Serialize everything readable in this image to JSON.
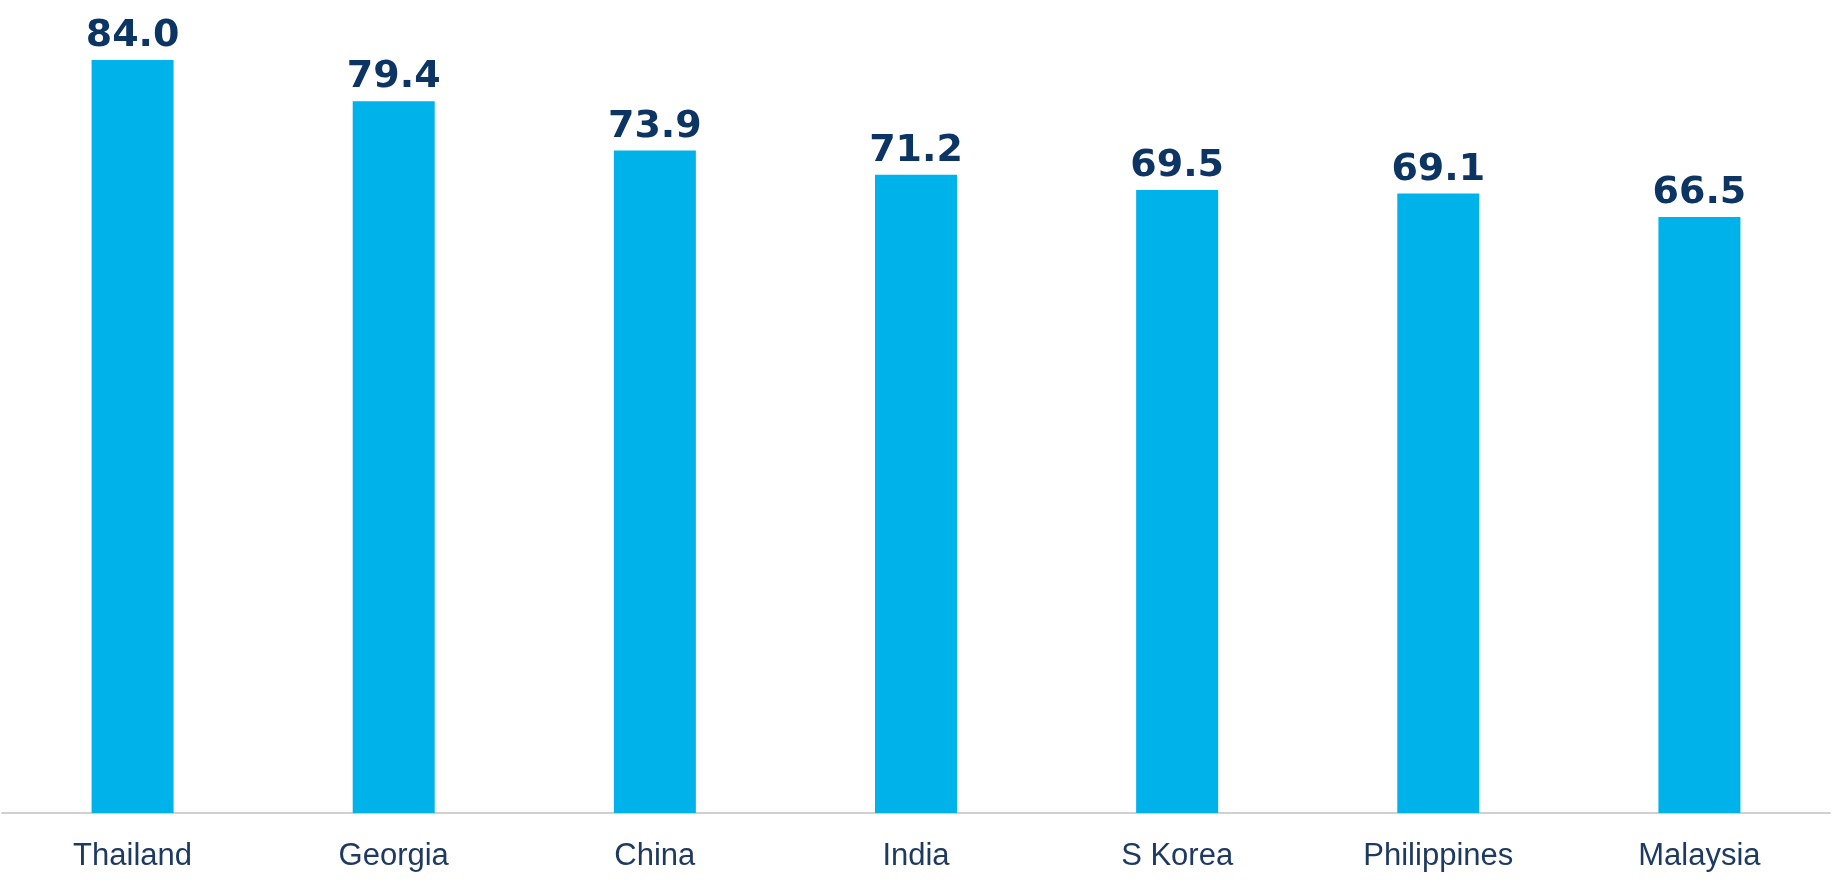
{
  "chart_data": {
    "type": "bar",
    "categories": [
      "Thailand",
      "Georgia",
      "China",
      "India",
      "S Korea",
      "Philippines",
      "Malaysia"
    ],
    "values": [
      84.0,
      79.4,
      73.9,
      71.2,
      69.5,
      69.1,
      66.5
    ],
    "color": "#00b2ea",
    "value_labels": [
      "84.0",
      "79.4",
      "73.9",
      "71.2",
      "69.5",
      "69.1",
      "66.5"
    ]
  }
}
